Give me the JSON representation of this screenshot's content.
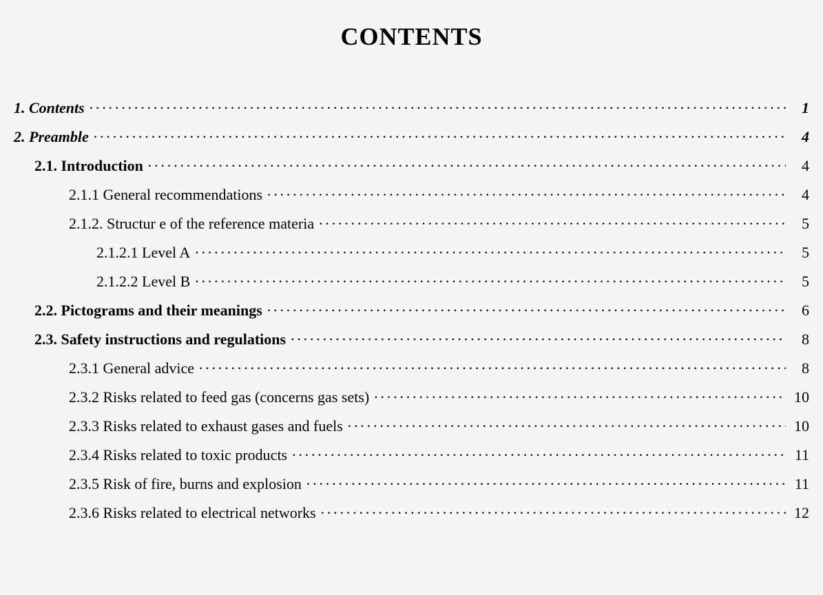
{
  "title": "CONTENTS",
  "leaderDots": "···································································································································································································································································",
  "entries": [
    {
      "level": 1,
      "label": "1. Contents",
      "page": "1"
    },
    {
      "level": 1,
      "label": "2. Preamble",
      "page": "4"
    },
    {
      "level": 2,
      "label": "2.1. Introduction",
      "page": "4"
    },
    {
      "level": 3,
      "label": "2.1.1 General recommendations",
      "page": "4"
    },
    {
      "level": 3,
      "label": "2.1.2. Structur e of the reference materia",
      "page": "5"
    },
    {
      "level": 4,
      "label": "2.1.2.1 Level A",
      "page": "5"
    },
    {
      "level": 4,
      "label": "2.1.2.2 Level B",
      "page": "5"
    },
    {
      "level": 2,
      "label": "2.2. Pictograms and their meanings",
      "page": "6"
    },
    {
      "level": 2,
      "label": "2.3. Safety instructions and regulations",
      "page": "8"
    },
    {
      "level": 3,
      "label": "2.3.1 General advice",
      "page": "8"
    },
    {
      "level": 3,
      "label": "2.3.2 Risks related to feed gas (concerns gas sets)",
      "page": "10"
    },
    {
      "level": 3,
      "label": "2.3.3 Risks related to exhaust gases and fuels",
      "page": "10"
    },
    {
      "level": 3,
      "label": "2.3.4 Risks related to toxic products",
      "page": "11"
    },
    {
      "level": 3,
      "label": "2.3.5 Risk of fire, burns and explosion",
      "page": "11"
    },
    {
      "level": 3,
      "label": "2.3.6 Risks related to electrical networks",
      "page": "12"
    }
  ]
}
